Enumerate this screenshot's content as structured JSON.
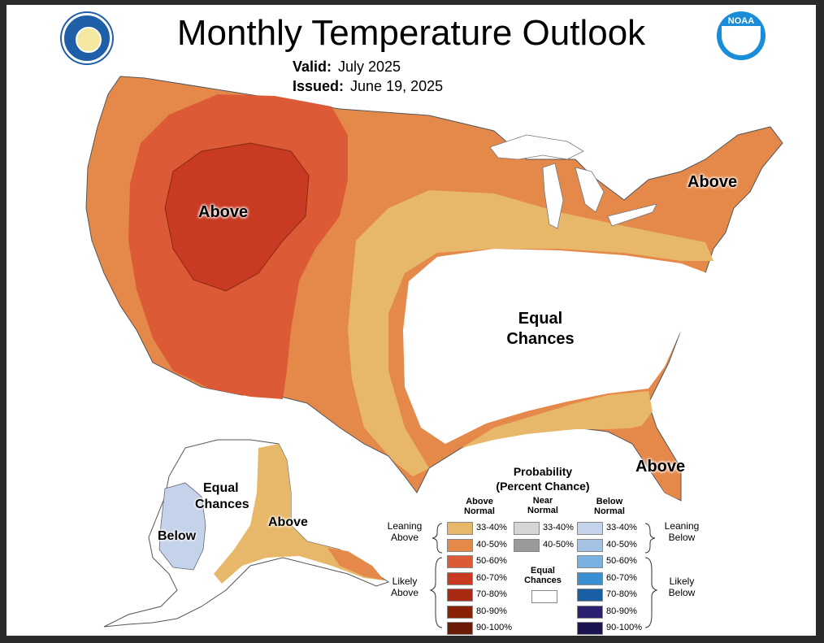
{
  "header": {
    "title": "Monthly Temperature Outlook",
    "valid_label": "Valid:",
    "valid_value": "July 2025",
    "issued_label": "Issued:",
    "issued_value": "June 19, 2025"
  },
  "logos": {
    "left_icon": "department-of-commerce-seal-icon",
    "right_icon": "noaa-logo-icon",
    "right_text": "NOAA"
  },
  "regions": {
    "west_above": "Above",
    "northeast_above": "Above",
    "central_equal_line1": "Equal",
    "central_equal_line2": "Chances",
    "florida_above": "Above",
    "alaska_equal_line1": "Equal",
    "alaska_equal_line2": "Chances",
    "alaska_above": "Above",
    "alaska_below": "Below"
  },
  "legend": {
    "title_line1": "Probability",
    "title_line2": "(Percent Chance)",
    "above_head": "Above Normal",
    "near_head": "Near Normal",
    "below_head": "Below Normal",
    "leaning_above": "Leaning Above",
    "likely_above": "Likely Above",
    "leaning_below": "Leaning Below",
    "likely_below": "Likely Below",
    "equal_chances": "Equal Chances",
    "above": [
      {
        "label": "33-40%",
        "color": "#e8b86a"
      },
      {
        "label": "40-50%",
        "color": "#e5894a"
      },
      {
        "label": "50-60%",
        "color": "#dc5a35"
      },
      {
        "label": "60-70%",
        "color": "#c83a22"
      },
      {
        "label": "70-80%",
        "color": "#a82a12"
      },
      {
        "label": "80-90%",
        "color": "#8a2208"
      },
      {
        "label": "90-100%",
        "color": "#6a1a05"
      }
    ],
    "near": [
      {
        "label": "33-40%",
        "color": "#d6d6d6"
      },
      {
        "label": "40-50%",
        "color": "#9a9a9a"
      }
    ],
    "below": [
      {
        "label": "33-40%",
        "color": "#c4d2ea"
      },
      {
        "label": "40-50%",
        "color": "#a4c2e4"
      },
      {
        "label": "50-60%",
        "color": "#78b0e0"
      },
      {
        "label": "60-70%",
        "color": "#3a8fd2"
      },
      {
        "label": "70-80%",
        "color": "#1a5ea4"
      },
      {
        "label": "80-90%",
        "color": "#2a2070"
      },
      {
        "label": "90-100%",
        "color": "#1a1550"
      }
    ]
  }
}
